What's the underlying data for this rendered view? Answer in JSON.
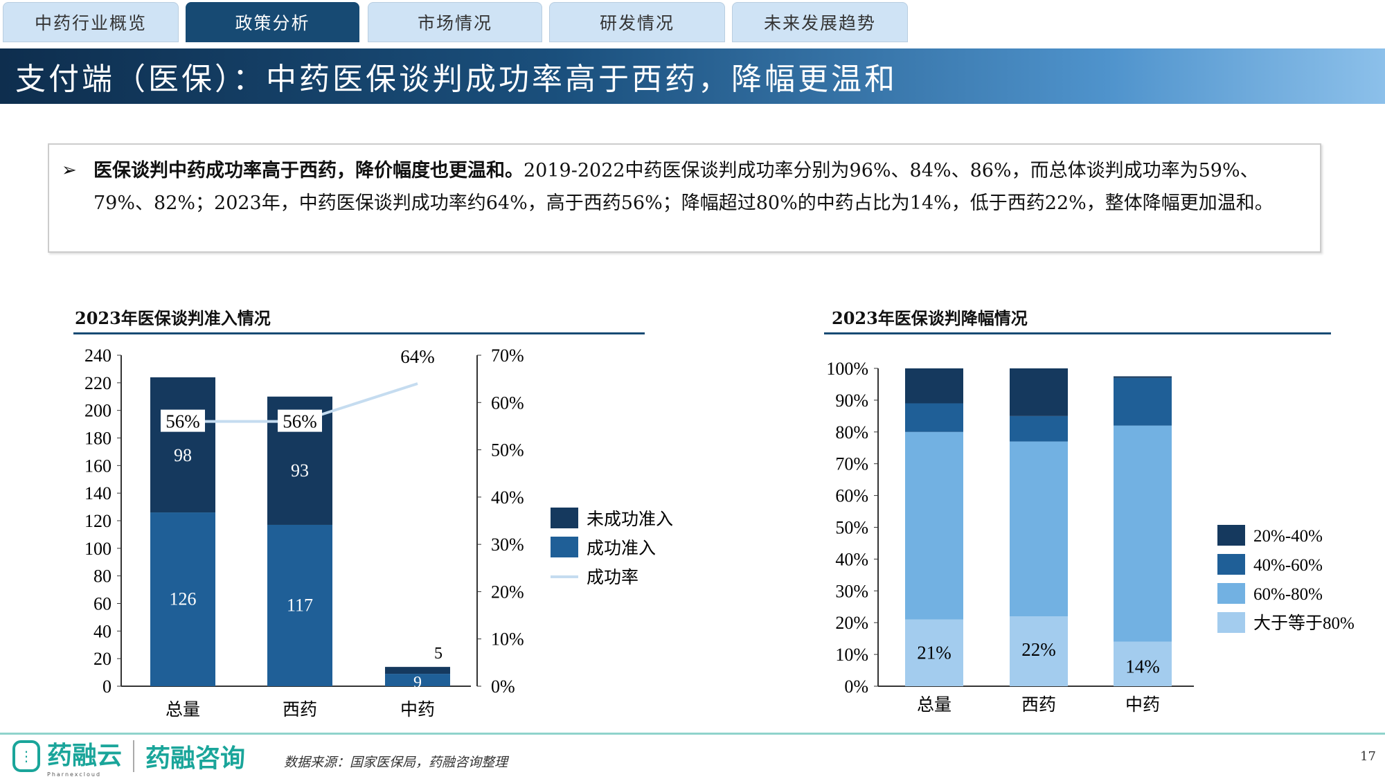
{
  "tabs": [
    "中药行业概览",
    "政策分析",
    "市场情况",
    "研发情况",
    "未来发展趋势"
  ],
  "active_tab": 1,
  "title": "支付端（医保）：中药医保谈判成功率高于西药，降幅更温和",
  "summary": {
    "bold": "医保谈判中药成功率高于西药，降价幅度也更温和。",
    "text": "2019-2022中药医保谈判成功率分别为96%、84%、86%，而总体谈判成功率为59%、79%、82%；2023年，中药医保谈判成功率约64%，高于西药56%；降幅超过80%的中药占比为14%，低于西药22%，整体降幅更加温和。"
  },
  "chart_data": [
    {
      "type": "bar",
      "title": "2023年医保谈判准入情况",
      "stacked": true,
      "categories": [
        "总量",
        "西药",
        "中药"
      ],
      "series": [
        {
          "name": "成功准入",
          "values": [
            126,
            117,
            9
          ],
          "color": "#1f5f97"
        },
        {
          "name": "未成功准入",
          "values": [
            98,
            93,
            5
          ],
          "color": "#15395e"
        }
      ],
      "line_series": {
        "name": "成功率",
        "values": [
          56,
          56,
          64
        ],
        "labels": [
          "56%",
          "56%",
          "64%"
        ],
        "color": "#c5dcf0",
        "axis": "right"
      },
      "ylim": [
        0,
        240
      ],
      "yticks": [
        0,
        20,
        40,
        60,
        80,
        100,
        120,
        140,
        160,
        180,
        200,
        220,
        240
      ],
      "y2lim": [
        0,
        70
      ],
      "y2ticks": [
        "0%",
        "10%",
        "20%",
        "30%",
        "40%",
        "50%",
        "60%",
        "70%"
      ],
      "legend": [
        "未成功准入",
        "成功准入",
        "成功率"
      ],
      "legend_position": "right"
    },
    {
      "type": "bar",
      "title": "2023年医保谈判降幅情况",
      "stacked": true,
      "categories": [
        "总量",
        "西药",
        "中药"
      ],
      "series": [
        {
          "name": "大于等于80%",
          "values": [
            21,
            22,
            14
          ],
          "color": "#a3ccee",
          "labels": [
            "21%",
            "22%",
            "14%"
          ]
        },
        {
          "name": "60%-80%",
          "values": [
            59,
            55,
            68
          ],
          "color": "#72b1e2"
        },
        {
          "name": "40%-60%",
          "values": [
            9,
            8,
            15
          ],
          "color": "#1f5f97"
        },
        {
          "name": "20%-40%",
          "values": [
            11,
            15,
            0.5
          ],
          "color": "#15395e"
        }
      ],
      "ylim": [
        0,
        100
      ],
      "yticks": [
        "0%",
        "10%",
        "20%",
        "30%",
        "40%",
        "50%",
        "60%",
        "70%",
        "80%",
        "90%",
        "100%"
      ],
      "legend": [
        "20%-40%",
        "40%-60%",
        "60%-80%",
        "大于等于80%"
      ],
      "legend_position": "right"
    }
  ],
  "footer": {
    "brand1": "药融云",
    "brand1_sub": "Pharnexcloud",
    "brand2": "药融咨询",
    "source": "数据来源：国家医保局，药融咨询整理",
    "page": "17"
  }
}
